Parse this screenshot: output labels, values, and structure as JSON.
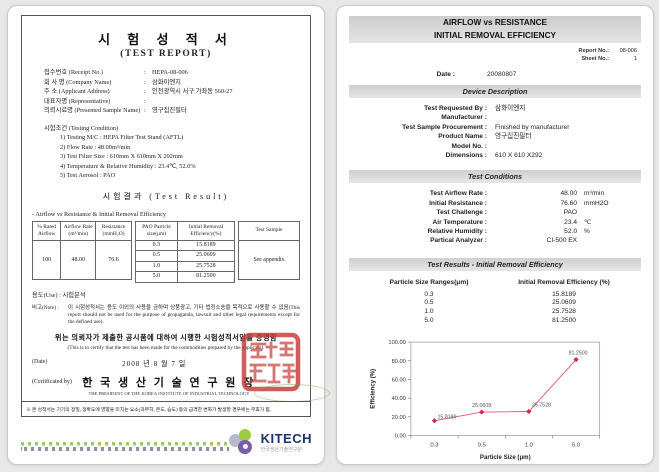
{
  "left_page": {
    "title_ko": "시 험 성 적 서",
    "title_en": "(TEST REPORT)",
    "info_rows": [
      {
        "label": "접수번호 (Receipt No.)",
        "value": "HEPA-08-006"
      },
      {
        "label": "회 사 명 (Company Name)",
        "value": "삼화이엔지"
      },
      {
        "label": "주      소 (Applicant Address)",
        "value": "인천광역시 서구 가좌동 560-27"
      },
      {
        "label": "대표자명 (Representative)",
        "value": ""
      },
      {
        "label": "의뢰시료명 (Presented Sample Name)",
        "value": "영구집진필터"
      }
    ],
    "testing_condition_title": "시험조건 (Testing Condition)",
    "testing_conditions": [
      "1) Testing M/C : HEPA Filter Test Stand (AFTL)",
      "2) Flow Rate : 48.00m³/min",
      "3) Test Filter Size : 610mm X 610mm X 292mm",
      "4) Temperature & Relative Humidity : 23.4℃, 52.0%",
      "5) Test Aerosol : PAO"
    ],
    "test_result_title": "시험결과 (Test Result)",
    "result_subtitle": "- Airflow vs Resistance & Initial Removal Efficiency",
    "airflow_table": {
      "headers": [
        "% Rated Airflow",
        "Airflow Rate (m³/min)",
        "Resistance (mmH₂O)"
      ],
      "row": [
        "100",
        "48.00",
        "76.6"
      ]
    },
    "efficiency_table": {
      "headers": [
        "PAO Particle size(μm)",
        "Initial Removal Efficiency(%)"
      ],
      "rows": [
        [
          "0.3",
          "15.8189"
        ],
        [
          "0.5",
          "25.0609"
        ],
        [
          "1.0",
          "25.7528"
        ],
        [
          "5.0",
          "81.2500"
        ]
      ]
    },
    "sample_table": {
      "header": "Test Sample",
      "value": "See appendix"
    },
    "use_row": "용도(Use)  : 시험분석",
    "note_label": "비고(Note) :",
    "note_text": "이 시험성적서는 용도 이외의 사용을 금하며 상품광고, 기타 법정소송을 목적으로 사용할 수 없음(This report should not be used for the purpose of propaganda, lawsuit and other legal requirements except for the defined use).",
    "certify_ko": "위는 의뢰자가 제출한 공시품에 대하여 시행한 시험성적서임을 증명함",
    "certify_en": "(This is to certify that the test has been made for the commodities prepared by the applicant).",
    "date_label": "(Date)",
    "date_value": "2008 년   8 월   7 일",
    "cert_by_label": "(Certificated by)",
    "cert_by_ko": "한 국 생 산 기 술 연 구 원 장",
    "cert_by_en": "THE PRESIDENT OF THE KOREA INSTITUTE OF INDUSTRIAL TECHNOLOGY",
    "footnote": "※ 본 성적서는 기기의 정밀, 정확도에 영향을 미치는 요소(과부하, 온도, 습도) 등의 급격한 변화가 발생할 경우에는 무효가 됨.",
    "logo": {
      "name": "KITECH",
      "subtitle": "한국생산기술연구원"
    }
  },
  "right_page": {
    "header_line1": "AIRFLOW vs RESISTANCE",
    "header_line2": "INITIAL REMOVAL EFFICIENCY",
    "report_no_label": "Report No.:",
    "report_no": "08-006",
    "sheet_no_label": "Sheet No.:",
    "sheet_no": "1",
    "date_label": "Date :",
    "date_value": "20080807",
    "section_device": "Device Description",
    "section_conditions": "Test Conditions",
    "section_results": "Test Results - Initial Removal Efficiency",
    "device_rows": [
      {
        "label": "Test Requested By :",
        "value": "삼화이엔지"
      },
      {
        "label": "Manufacturer :",
        "value": ""
      },
      {
        "label": "Test Sample Procurement :",
        "value": "Finished by manufacturer"
      },
      {
        "label": "Product Name :",
        "value": "영구집진필터"
      },
      {
        "label": "Model No. :",
        "value": ""
      },
      {
        "label": "Dimensions :",
        "value": "610 X 610 X292"
      }
    ],
    "condition_rows": [
      {
        "label": "Test Airflow Rate :",
        "value": "48.00",
        "unit": "m³/min"
      },
      {
        "label": "Initial Resistance :",
        "value": "76.60",
        "unit": "mmH2O"
      },
      {
        "label": "Test Challenge :",
        "value": "PAO",
        "unit": ""
      },
      {
        "label": "Air Temperature :",
        "value": "23.4",
        "unit": "℃"
      },
      {
        "label": "Relative Humidity :",
        "value": "52.0",
        "unit": "%"
      },
      {
        "label": "Partical Analyzer :",
        "value": "CI-500 EX",
        "unit": ""
      }
    ],
    "results_table": {
      "col1": "Particle Size Ranges(μm)",
      "col2": "Initial Removal Efficiency (%)",
      "rows": [
        [
          "0.3",
          "15.8189"
        ],
        [
          "0.5",
          "25.0609"
        ],
        [
          "1.0",
          "25.7528"
        ],
        [
          "5.0",
          "81.2500"
        ]
      ]
    }
  },
  "chart_data": {
    "type": "line",
    "x": [
      "0.3",
      "0.5",
      "1.0",
      "5.0"
    ],
    "values": [
      15.8189,
      25.0609,
      25.7528,
      81.25
    ],
    "point_labels": [
      "15.8189",
      "25.0609",
      "25.7528",
      "81.2500"
    ],
    "title": "",
    "xlabel": "Particle Size (μm)",
    "ylabel": "Efficiency (%)",
    "ylim": [
      0,
      100
    ],
    "yticks": [
      "0.00",
      "20.00",
      "40.00",
      "60.00",
      "80.00",
      "100.00"
    ],
    "grid": "off",
    "legend": "none",
    "line_color": "#e4697e",
    "marker_color": "#cc2b44",
    "label_color": "#555555"
  },
  "colors": {
    "page_background": "#e8e8e8",
    "section_bar_gray": "#d7d7d7",
    "seal_red": "#c43b35",
    "kitech_navy": "#17356b",
    "kitech_green": "#9ccc3f",
    "kitech_purple": "#7a5fa8",
    "kitech_gray": "#b9bac9"
  }
}
